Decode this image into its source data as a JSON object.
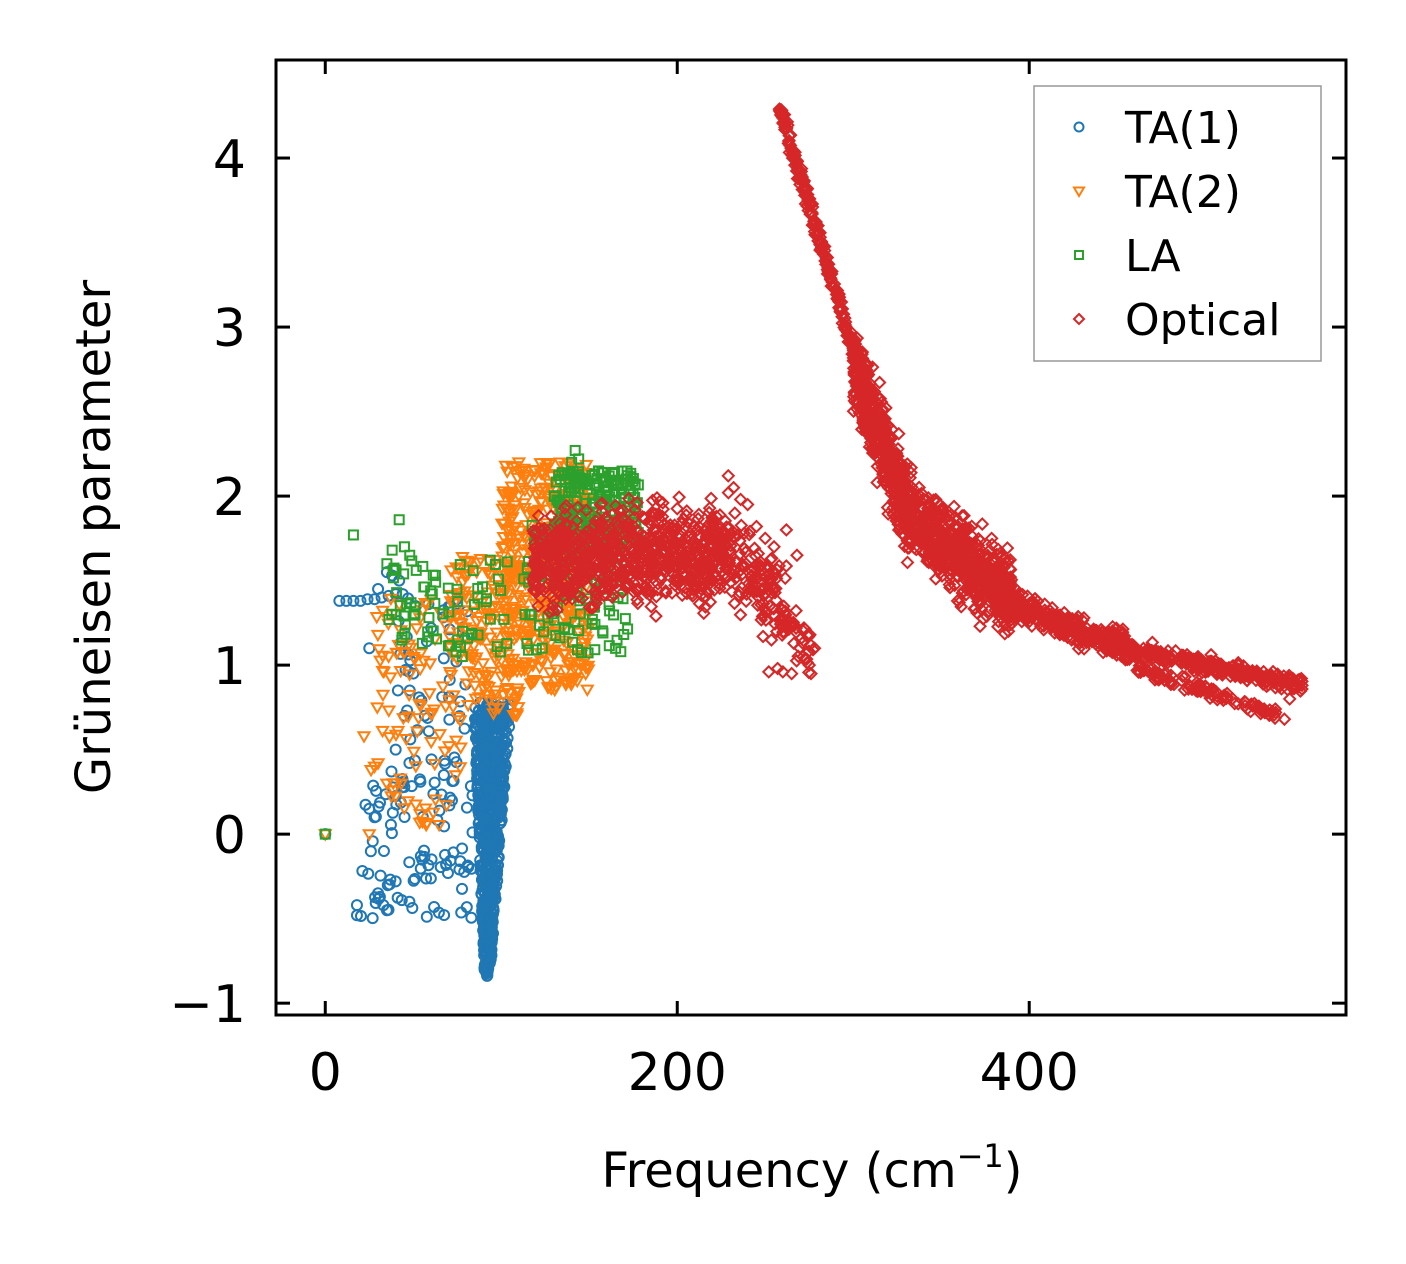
{
  "chart_data": {
    "type": "scatter",
    "title": "",
    "xlabel": "Frequency (cm",
    "xlabel_sup": "−1",
    "xlabel_end": ")",
    "ylabel": "Grüneisen parameter",
    "xlim": [
      -28,
      580
    ],
    "ylim": [
      -1.07,
      4.58
    ],
    "xticks": [
      0,
      200,
      400
    ],
    "xtick_labels": [
      "0",
      "200",
      "400"
    ],
    "yticks": [
      -1,
      0,
      1,
      2,
      3,
      4
    ],
    "ytick_labels": [
      "−1",
      "0",
      "1",
      "2",
      "3",
      "4"
    ],
    "grid": false,
    "legend_position": "top-right",
    "series": [
      {
        "name": "TA(1)",
        "color": "#1f77b4",
        "marker": "circle",
        "regions": [
          {
            "x": [
              84,
              104
            ],
            "y": [
              -0.85,
              0.78
            ],
            "n": 700,
            "shape": "v"
          },
          {
            "x": [
              20,
              84
            ],
            "y": [
              -0.5,
              0.4
            ],
            "n": 90
          },
          {
            "x": [
              40,
              82
            ],
            "y": [
              0.3,
              1.4
            ],
            "n": 55
          }
        ],
        "points": [
          [
            8,
            1.38
          ],
          [
            12,
            1.38
          ],
          [
            16,
            1.38
          ],
          [
            20,
            1.38
          ],
          [
            24,
            1.39
          ],
          [
            28,
            1.39
          ],
          [
            32,
            1.4
          ],
          [
            36,
            1.41
          ],
          [
            40,
            1.42
          ],
          [
            44,
            1.42
          ],
          [
            35,
            1.55
          ],
          [
            38,
            1.53
          ],
          [
            42,
            1.5
          ],
          [
            30,
            1.45
          ],
          [
            25,
            1.1
          ],
          [
            18,
            -0.48
          ],
          [
            18,
            -0.42
          ],
          [
            25,
            0.15
          ],
          [
            28,
            0.1
          ],
          [
            30,
            -0.35
          ],
          [
            33,
            -0.42
          ],
          [
            35,
            -0.45
          ],
          [
            0,
            0.0
          ],
          [
            40,
            0.5
          ],
          [
            45,
            0.7
          ],
          [
            48,
            0.85
          ],
          [
            50,
            0.95
          ]
        ]
      },
      {
        "name": "TA(2)",
        "color": "#ff7f0e",
        "marker": "triangle-down",
        "regions": [
          {
            "x": [
              100,
              150
            ],
            "y": [
              0.85,
              2.2
            ],
            "n": 420
          },
          {
            "x": [
              70,
              110
            ],
            "y": [
              0.7,
              1.65
            ],
            "n": 160
          },
          {
            "x": [
              28,
              78
            ],
            "y": [
              0.05,
              1.4
            ],
            "n": 95
          }
        ],
        "points": [
          [
            0,
            0.0
          ],
          [
            25,
            0.0
          ],
          [
            22,
            0.58
          ],
          [
            26,
            0.38
          ],
          [
            28,
            0.4
          ],
          [
            30,
            0.42
          ],
          [
            35,
            0.3
          ],
          [
            110,
            2.2
          ],
          [
            112,
            2.15
          ],
          [
            115,
            2.1
          ],
          [
            38,
            1.3
          ],
          [
            42,
            1.36
          ]
        ]
      },
      {
        "name": "LA",
        "color": "#2ca02c",
        "marker": "square",
        "regions": [
          {
            "x": [
              130,
              178
            ],
            "y": [
              1.7,
              2.15
            ],
            "n": 230
          },
          {
            "x": [
              112,
              172
            ],
            "y": [
              1.05,
              1.85
            ],
            "n": 110
          },
          {
            "x": [
              35,
              105
            ],
            "y": [
              1.05,
              1.65
            ],
            "n": 70
          }
        ],
        "points": [
          [
            0,
            0.0
          ],
          [
            16,
            1.77
          ],
          [
            42,
            1.86
          ],
          [
            38,
            1.68
          ],
          [
            45,
            1.7
          ],
          [
            35,
            1.6
          ],
          [
            48,
            1.65
          ],
          [
            142,
            2.27
          ],
          [
            140,
            2.2
          ],
          [
            144,
            2.22
          ],
          [
            172,
            1.47
          ],
          [
            78,
            1.2
          ]
        ]
      },
      {
        "name": "Optical",
        "color": "#d62728",
        "marker": "diamond",
        "bands": [
          {
            "x": [
              118,
              232
            ],
            "y_center": [
              1.62,
              1.68
            ],
            "spread": 0.42,
            "n": 800
          },
          {
            "x": [
              232,
              262
            ],
            "y_center": [
              1.6,
              1.35
            ],
            "spread": 0.38,
            "n": 120
          },
          {
            "x": [
              262,
              278
            ],
            "y_center": [
              1.2,
              1.05
            ],
            "spread": 0.2,
            "n": 30
          },
          {
            "x": [
              258,
              305
            ],
            "y_center": [
              4.3,
              2.7
            ],
            "spread": 0.09,
            "n": 240
          },
          {
            "x": [
              300,
              330
            ],
            "y_center": [
              2.75,
              1.95
            ],
            "spread": 0.38,
            "n": 450
          },
          {
            "x": [
              330,
              390
            ],
            "y_center": [
              1.9,
              1.4
            ],
            "spread": 0.34,
            "n": 650
          },
          {
            "x": [
              385,
              460
            ],
            "y_center": [
              1.38,
              1.08
            ],
            "spread": 0.12,
            "n": 380
          },
          {
            "x": [
              455,
              555
            ],
            "y_center": [
              1.1,
              0.88
            ],
            "spread": 0.07,
            "n": 300
          },
          {
            "x": [
              460,
              540
            ],
            "y_center": [
              0.98,
              0.72
            ],
            "spread": 0.06,
            "n": 110
          }
        ],
        "points": [
          [
            229,
            2.12
          ],
          [
            232,
            2.05
          ],
          [
            236,
            1.98
          ],
          [
            240,
            1.95
          ],
          [
            245,
            1.82
          ],
          [
            250,
            1.75
          ],
          [
            255,
            1.7
          ],
          [
            262,
            1.8
          ],
          [
            268,
            1.65
          ],
          [
            272,
            1.22
          ],
          [
            275,
            1.0
          ],
          [
            265,
            0.95
          ],
          [
            252,
            0.96
          ],
          [
            257,
            0.98
          ],
          [
            260,
            0.96
          ],
          [
            278,
            1.1
          ],
          [
            280,
            3.6
          ],
          [
            282,
            3.5
          ],
          [
            276,
            0.95
          ],
          [
            545,
            0.68
          ],
          [
            540,
            0.72
          ],
          [
            548,
            0.8
          ],
          [
            555,
            0.88
          ]
        ]
      }
    ]
  }
}
